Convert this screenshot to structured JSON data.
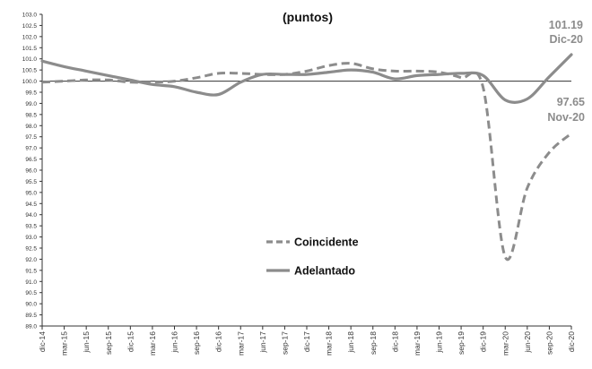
{
  "chart_data": {
    "type": "line",
    "title": "(puntos)",
    "xlabel": "",
    "ylabel": "",
    "ylim": [
      89.0,
      103.0
    ],
    "yticks": [
      "89.0",
      "89.5",
      "90.0",
      "90.5",
      "91.0",
      "91.5",
      "92.0",
      "92.5",
      "93.0",
      "93.5",
      "94.0",
      "94.5",
      "95.0",
      "95.5",
      "96.0",
      "96.5",
      "97.0",
      "97.5",
      "98.0",
      "98.5",
      "99.0",
      "99.5",
      "100.0",
      "100.5",
      "101.0",
      "101.5",
      "102.0",
      "102.5",
      "103.0"
    ],
    "categories": [
      "dic-14",
      "mar-15",
      "jun-15",
      "sep-15",
      "dic-15",
      "mar-16",
      "jun-16",
      "sep-16",
      "dic-16",
      "mar-17",
      "jun-17",
      "sep-17",
      "dic-17",
      "mar-18",
      "jun-18",
      "sep-18",
      "dic-18",
      "mar-19",
      "jun-19",
      "sep-19",
      "dic-19",
      "mar-20",
      "jun-20",
      "sep-20",
      "dic-20"
    ],
    "reference_line": 100.0,
    "grid": false,
    "legend_position": "center-left",
    "series": [
      {
        "name": "Coincidente",
        "style": "dashed",
        "color": "#8c8c8c",
        "values": [
          99.95,
          100.0,
          100.05,
          100.05,
          99.95,
          99.95,
          100.0,
          100.15,
          100.35,
          100.35,
          100.3,
          100.3,
          100.45,
          100.7,
          100.8,
          100.55,
          100.45,
          100.45,
          100.4,
          100.15,
          99.7,
          92.1,
          95.2,
          96.8,
          97.65
        ]
      },
      {
        "name": "Adelantado",
        "style": "solid",
        "color": "#8c8c8c",
        "values": [
          100.9,
          100.65,
          100.45,
          100.25,
          100.05,
          99.85,
          99.75,
          99.5,
          99.4,
          99.95,
          100.3,
          100.3,
          100.3,
          100.4,
          100.5,
          100.4,
          100.1,
          100.25,
          100.3,
          100.35,
          100.25,
          99.15,
          99.2,
          100.2,
          101.19
        ]
      }
    ],
    "annotations": [
      {
        "series": "Adelantado",
        "value_label": "101.19",
        "date_label": "Dic-20"
      },
      {
        "series": "Coincidente",
        "value_label": "97.65",
        "date_label": "Nov-20"
      }
    ],
    "colors": {
      "axis": "#333333",
      "reference": "#333333",
      "series": "#8c8c8c",
      "annotation": "#8c8c8c"
    }
  }
}
